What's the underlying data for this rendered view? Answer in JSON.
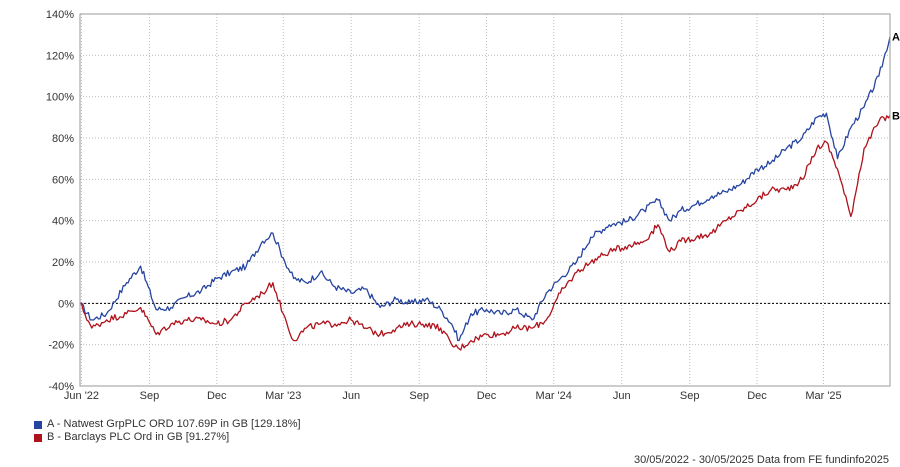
{
  "chart_data": {
    "type": "line",
    "title": "",
    "xlabel": "",
    "ylabel": "",
    "x_tick_labels": [
      "Jun '22",
      "Sep",
      "Dec",
      "Mar '23",
      "Jun",
      "Sep",
      "Dec",
      "Mar '24",
      "Jun",
      "Sep",
      "Dec",
      "Mar '25"
    ],
    "y_tick_labels": [
      "140%",
      "120%",
      "100%",
      "80%",
      "60%",
      "40%",
      "20%",
      "0%",
      "-20%",
      "-40%"
    ],
    "ylim": [
      -40,
      140
    ],
    "y_unit": "%",
    "grid": true,
    "legend_position": "bottom-left",
    "x": [
      "2022-05-30",
      "2022-06-15",
      "2022-07-05",
      "2022-08-01",
      "2022-08-20",
      "2022-09-10",
      "2022-09-30",
      "2022-10-20",
      "2022-11-10",
      "2022-12-01",
      "2022-12-20",
      "2023-01-10",
      "2023-02-01",
      "2023-02-15",
      "2023-03-01",
      "2023-03-15",
      "2023-04-01",
      "2023-04-20",
      "2023-05-10",
      "2023-06-01",
      "2023-06-20",
      "2023-07-10",
      "2023-08-01",
      "2023-08-20",
      "2023-09-10",
      "2023-09-30",
      "2023-10-15",
      "2023-10-25",
      "2023-11-10",
      "2023-12-01",
      "2023-12-20",
      "2024-01-10",
      "2024-02-01",
      "2024-02-20",
      "2024-03-10",
      "2024-04-01",
      "2024-04-20",
      "2024-05-15",
      "2024-06-10",
      "2024-07-01",
      "2024-07-20",
      "2024-08-05",
      "2024-08-20",
      "2024-09-10",
      "2024-10-01",
      "2024-10-20",
      "2024-11-10",
      "2024-12-01",
      "2024-12-20",
      "2025-01-10",
      "2025-01-31",
      "2025-02-20",
      "2025-03-05",
      "2025-03-20",
      "2025-04-07",
      "2025-04-25",
      "2025-05-15",
      "2025-05-30"
    ],
    "series": [
      {
        "name": "A - Natwest GrpPLC ORD 107.69P in GB [129.18%]",
        "end_label": "A",
        "color": "#2745a0",
        "values": [
          0,
          -8,
          -5,
          10,
          18,
          -3,
          -2,
          3,
          6,
          12,
          15,
          18,
          30,
          34,
          22,
          12,
          10,
          15,
          8,
          5,
          7,
          -2,
          2,
          0,
          2,
          -3,
          -10,
          -18,
          -5,
          -3,
          -5,
          -3,
          -8,
          5,
          12,
          20,
          32,
          38,
          40,
          45,
          50,
          40,
          45,
          48,
          52,
          54,
          58,
          65,
          68,
          75,
          80,
          90,
          92,
          70,
          85,
          95,
          110,
          129
        ]
      },
      {
        "name": "B - Barclays PLC Ord in GB [91.27%]",
        "end_label": "B",
        "color": "#b0121b",
        "values": [
          0,
          -12,
          -8,
          -5,
          -2,
          -15,
          -10,
          -8,
          -8,
          -10,
          -8,
          0,
          5,
          10,
          -5,
          -18,
          -12,
          -10,
          -10,
          -8,
          -12,
          -15,
          -12,
          -10,
          -10,
          -12,
          -20,
          -22,
          -18,
          -15,
          -15,
          -12,
          -12,
          -8,
          5,
          15,
          20,
          25,
          28,
          30,
          38,
          25,
          30,
          32,
          34,
          40,
          45,
          50,
          55,
          55,
          60,
          75,
          78,
          65,
          42,
          75,
          88,
          91
        ]
      }
    ]
  },
  "footer": {
    "text": "30/05/2022 - 30/05/2025 Data from FE fundinfo2025"
  }
}
